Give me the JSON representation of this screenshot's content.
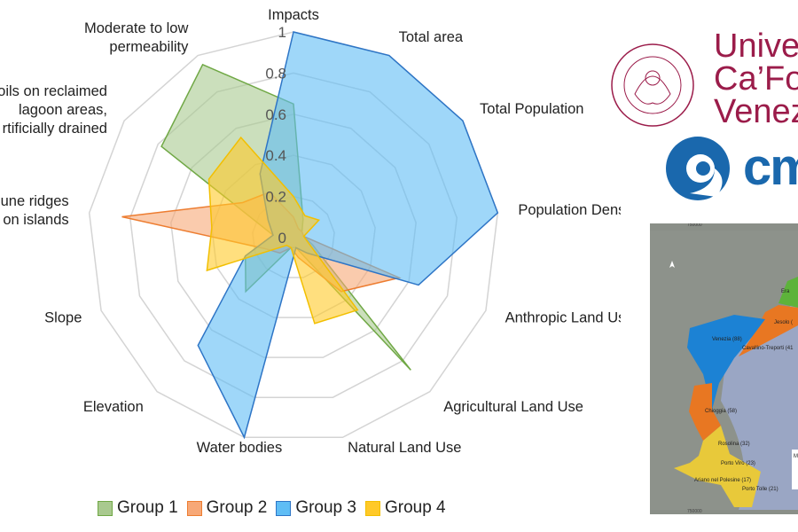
{
  "chart_data": {
    "type": "radar",
    "axes": [
      "Impacts",
      "Total area",
      "Total Population",
      "Population Density",
      "Anthropic Land Use",
      "Agricultural Land Use",
      "Natural Land Use",
      "Water bodies",
      "Elevation",
      "Slope",
      "dune ridges\non islands",
      "oils on reclaimed\nlagoon areas,\nrtificially drained",
      "Moderate to low\npermeability"
    ],
    "ticks": [
      "0",
      "0.2",
      "0.4",
      "0.6",
      "0.8",
      "1"
    ],
    "range": [
      0,
      1
    ],
    "series": [
      {
        "name": "Group 1",
        "color": "#70a845",
        "fill": "#a9c98f",
        "values": [
          0.65,
          0.1,
          0.05,
          0.05,
          0.1,
          0.86,
          0.05,
          0.05,
          0.35,
          0.25,
          0.1,
          0.78,
          0.95
        ]
      },
      {
        "name": "Group 2",
        "color": "#ed7d31",
        "fill": "#f7a877",
        "values": [
          0.1,
          0.05,
          0.05,
          0.05,
          0.55,
          0.35,
          0.1,
          0.05,
          0.1,
          0.15,
          0.84,
          0.3,
          0.25
        ]
      },
      {
        "name": "Group 3",
        "color": "#2e75c6",
        "fill": "#5fbdf5",
        "values": [
          1,
          1,
          1,
          1,
          0.65,
          0.1,
          0.05,
          1,
          0.7,
          0.25,
          0.1,
          0.15,
          0.35
        ]
      },
      {
        "name": "Group 4",
        "color": "#f2bf00",
        "fill": "#ffc928",
        "values": [
          0.2,
          0.12,
          0.15,
          0.05,
          0.08,
          0.47,
          0.43,
          0.05,
          0.05,
          0.45,
          0.4,
          0.5,
          0.55
        ]
      }
    ],
    "legend_position": "bottom"
  },
  "logos": {
    "university_lines": [
      "Univer",
      "Ca’Fos",
      "Venez"
    ],
    "seal_text": "VENETIARUM UNIVERSITAS · IN DOMO FOSCARI",
    "cmcc": "cm"
  },
  "map": {
    "coord_label": "750000",
    "labels": [
      "Era",
      "Jesolo (",
      "Venezia (88)",
      "Cavallino-Treporti (41",
      "Chioggia (58)",
      "Rosolina (32)",
      "Porto Viro (23)",
      "Ariano nel Polesine (17)",
      "Porto Tolle (21)"
    ],
    "legend_title": "M"
  }
}
